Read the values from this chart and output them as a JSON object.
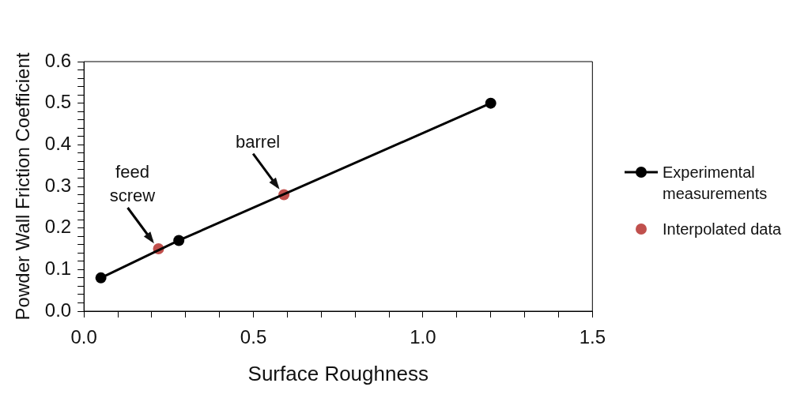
{
  "chart_data": {
    "type": "line",
    "xlabel": "Surface Roughness",
    "ylabel": "Powder Wall Friction Coefficient",
    "xlim": [
      0,
      1.5
    ],
    "ylim": [
      0,
      0.6
    ],
    "xticks": [
      {
        "value": 0,
        "label": "0.0"
      },
      {
        "value": 0.1,
        "label": null
      },
      {
        "value": 0.2,
        "label": null
      },
      {
        "value": 0.3,
        "label": null
      },
      {
        "value": 0.4,
        "label": null
      },
      {
        "value": 0.5,
        "label": "0.5"
      },
      {
        "value": 0.6,
        "label": null
      },
      {
        "value": 0.7,
        "label": null
      },
      {
        "value": 0.8,
        "label": null
      },
      {
        "value": 0.9,
        "label": null
      },
      {
        "value": 1,
        "label": "1.0"
      },
      {
        "value": 1.1,
        "label": null
      },
      {
        "value": 1.2,
        "label": null
      },
      {
        "value": 1.3,
        "label": null
      },
      {
        "value": 1.4,
        "label": null
      },
      {
        "value": 1.5,
        "label": "1.5"
      }
    ],
    "yticks": [
      {
        "value": 0,
        "label": "0.0"
      },
      {
        "value": 0.02,
        "label": null
      },
      {
        "value": 0.04,
        "label": null
      },
      {
        "value": 0.06,
        "label": null
      },
      {
        "value": 0.08,
        "label": null
      },
      {
        "value": 0.1,
        "label": "0.1"
      },
      {
        "value": 0.12,
        "label": null
      },
      {
        "value": 0.14,
        "label": null
      },
      {
        "value": 0.16,
        "label": null
      },
      {
        "value": 0.18,
        "label": null
      },
      {
        "value": 0.2,
        "label": "0.2"
      },
      {
        "value": 0.22,
        "label": null
      },
      {
        "value": 0.24,
        "label": null
      },
      {
        "value": 0.26,
        "label": null
      },
      {
        "value": 0.28,
        "label": null
      },
      {
        "value": 0.3,
        "label": "0.3"
      },
      {
        "value": 0.32,
        "label": null
      },
      {
        "value": 0.34,
        "label": null
      },
      {
        "value": 0.36,
        "label": null
      },
      {
        "value": 0.38,
        "label": null
      },
      {
        "value": 0.4,
        "label": "0.4"
      },
      {
        "value": 0.42,
        "label": null
      },
      {
        "value": 0.44,
        "label": null
      },
      {
        "value": 0.46,
        "label": null
      },
      {
        "value": 0.48,
        "label": null
      },
      {
        "value": 0.5,
        "label": "0.5"
      },
      {
        "value": 0.52,
        "label": null
      },
      {
        "value": 0.54,
        "label": null
      },
      {
        "value": 0.56,
        "label": null
      },
      {
        "value": 0.58,
        "label": null
      },
      {
        "value": 0.6,
        "label": "0.6"
      }
    ],
    "grid": false,
    "legend": "right",
    "marker": "circle",
    "line_style": "solid",
    "series": [
      {
        "name": "Experimental measurements",
        "type": "line",
        "color": "#000000",
        "x": [
          0.05,
          0.28,
          1.2
        ],
        "values": [
          0.08,
          0.17,
          0.5
        ]
      },
      {
        "name": "Interpolated data",
        "type": "scatter",
        "color": "#c0504d",
        "x": [
          0.22,
          0.59
        ],
        "values": [
          0.15,
          0.28
        ]
      }
    ],
    "annotations": [
      {
        "text": "feed screw",
        "x": 0.22,
        "y": 0.15
      },
      {
        "text": "barrel",
        "x": 0.59,
        "y": 0.28
      }
    ]
  }
}
